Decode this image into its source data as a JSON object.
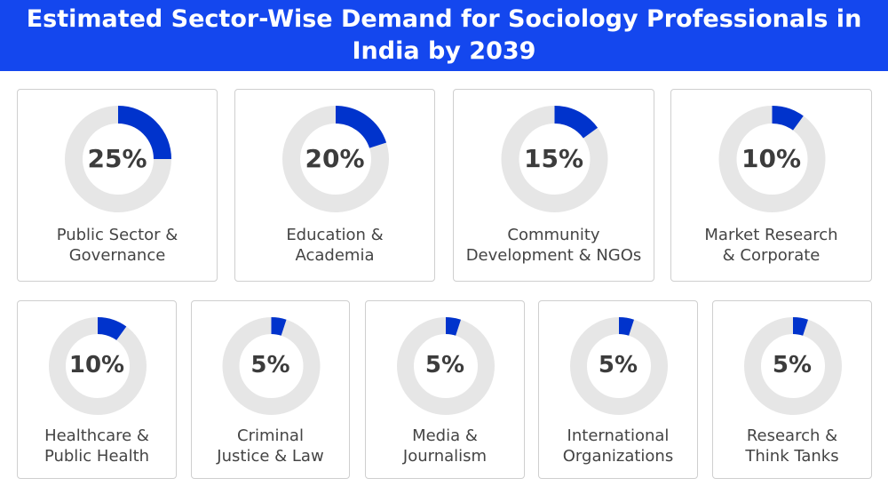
{
  "chart_data": {
    "type": "donut-grid",
    "title": "Estimated Sector-Wise Demand for Sociology Professionals in India by 2039",
    "colors": {
      "filled": "#0033cc",
      "track": "#e6e6e6",
      "header": "#1447ee"
    },
    "items": [
      {
        "label_lines": [
          "Public Sector &",
          "Governance"
        ],
        "value": 25,
        "display": "25%"
      },
      {
        "label_lines": [
          "Education &",
          "Academia"
        ],
        "value": 20,
        "display": "20%"
      },
      {
        "label_lines": [
          "Community",
          "Development & NGOs"
        ],
        "value": 15,
        "display": "15%"
      },
      {
        "label_lines": [
          "Market Research",
          "& Corporate"
        ],
        "value": 10,
        "display": "10%"
      },
      {
        "label_lines": [
          "Healthcare &",
          "Public Health"
        ],
        "value": 10,
        "display": "10%"
      },
      {
        "label_lines": [
          "Criminal",
          "Justice & Law"
        ],
        "value": 5,
        "display": "5%"
      },
      {
        "label_lines": [
          "Media &",
          "Journalism"
        ],
        "value": 5,
        "display": "5%"
      },
      {
        "label_lines": [
          "International",
          "Organizations"
        ],
        "value": 5,
        "display": "5%"
      },
      {
        "label_lines": [
          "Research &",
          "Think Tanks"
        ],
        "value": 5,
        "display": "5%"
      }
    ]
  }
}
